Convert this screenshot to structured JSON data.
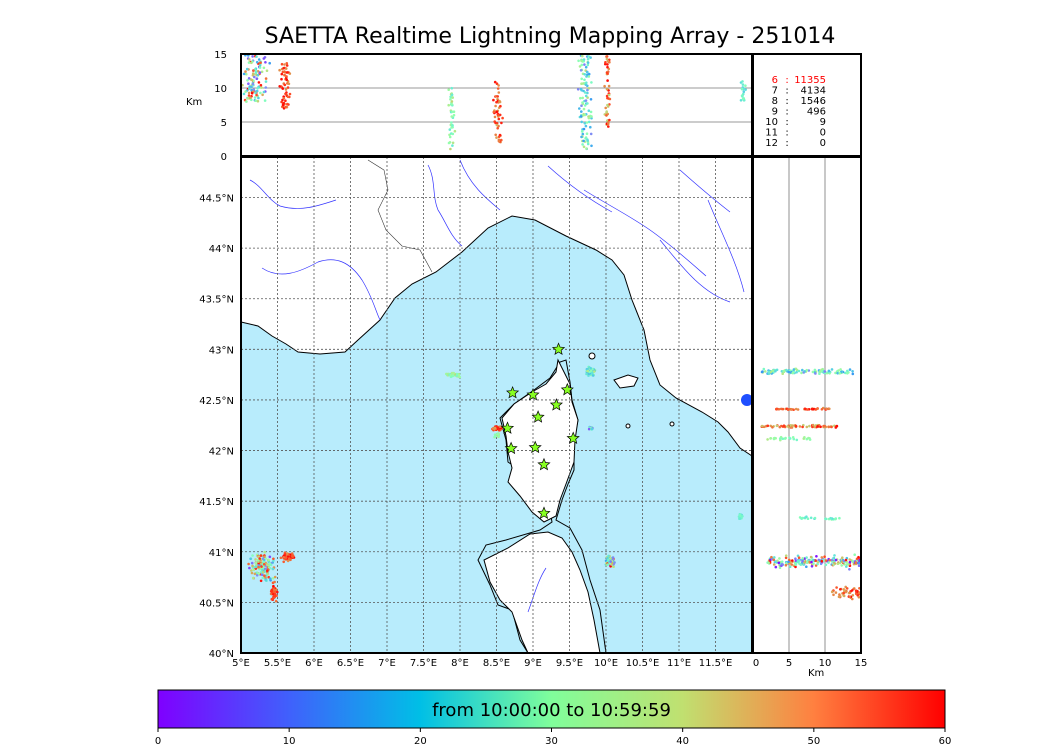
{
  "title": "SAETTA Realtime Lightning Mapping Array - 251014",
  "map": {
    "lon_range": [
      5,
      12.0
    ],
    "lat_range": [
      40,
      44.9
    ],
    "lon_ticks": [
      {
        "v": 5,
        "label": "5°E"
      },
      {
        "v": 5.5,
        "label": "5.5°E"
      },
      {
        "v": 6,
        "label": "6°E"
      },
      {
        "v": 6.5,
        "label": "6.5°E"
      },
      {
        "v": 7,
        "label": "7°E"
      },
      {
        "v": 7.5,
        "label": "7.5°E"
      },
      {
        "v": 8,
        "label": "8°E"
      },
      {
        "v": 8.5,
        "label": "8.5°E"
      },
      {
        "v": 9,
        "label": "9°E"
      },
      {
        "v": 9.5,
        "label": "9.5°E"
      },
      {
        "v": 10,
        "label": "10°E"
      },
      {
        "v": 10.5,
        "label": "10.5°E"
      },
      {
        "v": 11,
        "label": "11°E"
      },
      {
        "v": 11.5,
        "label": "11.5°E"
      }
    ],
    "lat_ticks": [
      {
        "v": 40,
        "label": "40°N"
      },
      {
        "v": 40.5,
        "label": "40.5°N"
      },
      {
        "v": 41,
        "label": "41°N"
      },
      {
        "v": 41.5,
        "label": "41.5°N"
      },
      {
        "v": 42,
        "label": "42°N"
      },
      {
        "v": 42.5,
        "label": "42.5°N"
      },
      {
        "v": 43,
        "label": "43°N"
      },
      {
        "v": 43.5,
        "label": "43.5°N"
      },
      {
        "v": 44,
        "label": "44°N"
      },
      {
        "v": 44.5,
        "label": "44.5°N"
      }
    ],
    "sea_color": "#b8ecfc",
    "stations": [
      [
        9.35,
        43.0
      ],
      [
        8.72,
        42.57
      ],
      [
        9.0,
        42.55
      ],
      [
        9.47,
        42.6
      ],
      [
        9.32,
        42.45
      ],
      [
        9.07,
        42.33
      ],
      [
        8.65,
        42.22
      ],
      [
        9.55,
        42.12
      ],
      [
        8.7,
        42.02
      ],
      [
        9.03,
        42.03
      ],
      [
        9.15,
        41.86
      ],
      [
        9.15,
        41.38
      ]
    ]
  },
  "altitude_panel": {
    "ylabel": "Km",
    "y_ticks": [
      {
        "v": 0,
        "label": "0"
      },
      {
        "v": 5,
        "label": "5"
      },
      {
        "v": 10,
        "label": "10"
      },
      {
        "v": 15,
        "label": "15"
      }
    ]
  },
  "side_panel": {
    "xlabel": "Km",
    "x_ticks": [
      {
        "v": 0,
        "label": "0"
      },
      {
        "v": 5,
        "label": "5"
      },
      {
        "v": 10,
        "label": "10"
      },
      {
        "v": 15,
        "label": "15"
      }
    ]
  },
  "station_counts": [
    {
      "stations": "6",
      "sep": ":",
      "count": "11355",
      "color": "#ff0000"
    },
    {
      "stations": "7",
      "sep": ":",
      "count": "4134",
      "color": "#000000"
    },
    {
      "stations": "8",
      "sep": ":",
      "count": "1546",
      "color": "#000000"
    },
    {
      "stations": "9",
      "sep": ":",
      "count": "496",
      "color": "#000000"
    },
    {
      "stations": "10",
      "sep": ":",
      "count": "9",
      "color": "#000000"
    },
    {
      "stations": "11",
      "sep": ":",
      "count": "0",
      "color": "#000000"
    },
    {
      "stations": "12",
      "sep": ":",
      "count": "0",
      "color": "#000000"
    }
  ],
  "colorbar": {
    "label": "from 10:00:00 to 10:59:59",
    "ticks": [
      {
        "v": 0,
        "label": "0"
      },
      {
        "v": 10,
        "label": "10"
      },
      {
        "v": 20,
        "label": "20"
      },
      {
        "v": 30,
        "label": "30"
      },
      {
        "v": 40,
        "label": "40"
      },
      {
        "v": 50,
        "label": "50"
      },
      {
        "v": 60,
        "label": "60"
      }
    ],
    "range": [
      0,
      60
    ]
  },
  "lightning_clusters": [
    {
      "lon": 5.3,
      "lat": 40.85,
      "spread_lon": 0.22,
      "spread_lat": 0.18,
      "n": 160,
      "t": [
        5,
        60
      ],
      "zmin": 1,
      "zmax": 13
    },
    {
      "lon": 5.65,
      "lat": 40.95,
      "spread_lon": 0.12,
      "spread_lat": 0.06,
      "n": 60,
      "t": [
        48,
        60
      ],
      "zmin": 7,
      "zmax": 14
    },
    {
      "lon": 5.45,
      "lat": 40.6,
      "spread_lon": 0.06,
      "spread_lat": 0.12,
      "n": 40,
      "t": [
        50,
        60
      ],
      "zmin": 6,
      "zmax": 14
    },
    {
      "lon": 7.9,
      "lat": 42.75,
      "spread_lon": 0.14,
      "spread_lat": 0.03,
      "n": 45,
      "t": [
        22,
        42
      ],
      "zmin": 2,
      "zmax": 10
    },
    {
      "lon": 8.5,
      "lat": 42.22,
      "spread_lon": 0.1,
      "spread_lat": 0.03,
      "n": 45,
      "t": [
        45,
        60
      ],
      "zmin": 4,
      "zmax": 11
    },
    {
      "lon": 8.5,
      "lat": 42.15,
      "spread_lon": 0.06,
      "spread_lat": 0.04,
      "n": 15,
      "t": [
        28,
        40
      ],
      "zmin": 1,
      "zmax": 5
    },
    {
      "lon": 9.78,
      "lat": 42.78,
      "spread_lon": 0.09,
      "spread_lat": 0.06,
      "n": 80,
      "t": [
        14,
        40
      ],
      "zmin": 1,
      "zmax": 14
    },
    {
      "lon": 9.8,
      "lat": 42.22,
      "spread_lon": 0.05,
      "spread_lat": 0.02,
      "n": 12,
      "t": [
        5,
        45
      ],
      "zmin": 1,
      "zmax": 6
    },
    {
      "lon": 10.05,
      "lat": 40.9,
      "spread_lon": 0.09,
      "spread_lat": 0.07,
      "n": 70,
      "t": [
        0,
        60
      ],
      "zmin": 1,
      "zmax": 14
    },
    {
      "lon": 11.85,
      "lat": 41.35,
      "spread_lon": 0.05,
      "spread_lat": 0.04,
      "n": 18,
      "t": [
        18,
        30
      ],
      "zmin": 7,
      "zmax": 11
    }
  ],
  "top_strips": [
    {
      "lon": 5.2,
      "spread": 0.22,
      "n": 120,
      "t": [
        5,
        60
      ],
      "zmin": 8,
      "zmax": 15
    },
    {
      "lon": 5.6,
      "spread": 0.1,
      "n": 60,
      "t": [
        48,
        60
      ],
      "zmin": 7,
      "zmax": 14
    },
    {
      "lon": 7.88,
      "spread": 0.06,
      "n": 40,
      "t": [
        22,
        42
      ],
      "zmin": 1,
      "zmax": 10
    },
    {
      "lon": 8.52,
      "spread": 0.08,
      "n": 50,
      "t": [
        45,
        60
      ],
      "zmin": 2,
      "zmax": 11
    },
    {
      "lon": 9.72,
      "spread": 0.13,
      "n": 110,
      "t": [
        10,
        40
      ],
      "zmin": 1,
      "zmax": 15
    },
    {
      "lon": 10.02,
      "spread": 0.05,
      "n": 50,
      "t": [
        40,
        60
      ],
      "zmin": 4,
      "zmax": 15
    },
    {
      "lon": 11.88,
      "spread": 0.04,
      "n": 20,
      "t": [
        18,
        30
      ],
      "zmin": 8,
      "zmax": 11
    }
  ],
  "side_strips": [
    {
      "lat": 42.78,
      "spread": 0.035,
      "n": 110,
      "t": [
        10,
        40
      ],
      "zmin": 1,
      "zmax": 14
    },
    {
      "lat": 42.41,
      "spread": 0.01,
      "n": 40,
      "t": [
        48,
        60
      ],
      "zmin": 3,
      "zmax": 11
    },
    {
      "lat": 42.24,
      "spread": 0.02,
      "n": 60,
      "t": [
        40,
        60
      ],
      "zmin": 1,
      "zmax": 12
    },
    {
      "lat": 42.12,
      "spread": 0.02,
      "n": 25,
      "t": [
        25,
        40
      ],
      "zmin": 2,
      "zmax": 8
    },
    {
      "lat": 41.33,
      "spread": 0.02,
      "n": 20,
      "t": [
        18,
        30
      ],
      "zmin": 6,
      "zmax": 12
    },
    {
      "lat": 40.9,
      "spread": 0.08,
      "n": 200,
      "t": [
        0,
        60
      ],
      "zmin": 2,
      "zmax": 15
    },
    {
      "lat": 40.6,
      "spread": 0.08,
      "n": 50,
      "t": [
        45,
        60
      ],
      "zmin": 11,
      "zmax": 15
    }
  ]
}
